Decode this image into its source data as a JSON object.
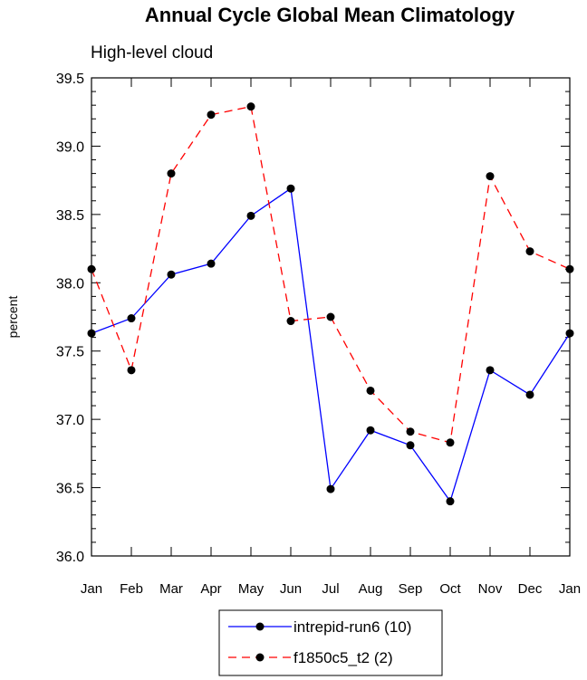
{
  "chart_data": {
    "type": "line",
    "title": "Annual Cycle Global Mean Climatology",
    "subtitle": "High-level cloud",
    "xlabel": "",
    "ylabel": "percent",
    "categories": [
      "Jan",
      "Feb",
      "Mar",
      "Apr",
      "May",
      "Jun",
      "Jul",
      "Aug",
      "Sep",
      "Oct",
      "Nov",
      "Dec",
      "Jan"
    ],
    "ylim": [
      36.0,
      39.5
    ],
    "yticks": [
      "36.0",
      "36.5",
      "37.0",
      "37.5",
      "38.0",
      "38.5",
      "39.0",
      "39.5"
    ],
    "grid": false,
    "legend_position": "bottom-center",
    "series": [
      {
        "name": "intrepid-run6 (10)",
        "color": "#0000ff",
        "dash": "solid",
        "marker": "circle",
        "values": [
          37.63,
          37.74,
          38.06,
          38.14,
          38.49,
          38.69,
          36.49,
          36.92,
          36.81,
          36.4,
          37.36,
          37.18,
          37.63
        ]
      },
      {
        "name": "f1850c5_t2 (2)",
        "color": "#ff0000",
        "dash": "dashed",
        "marker": "circle",
        "values": [
          38.1,
          37.36,
          38.8,
          39.23,
          39.29,
          37.72,
          37.75,
          37.21,
          36.91,
          36.83,
          38.78,
          38.23,
          38.1
        ]
      }
    ]
  }
}
